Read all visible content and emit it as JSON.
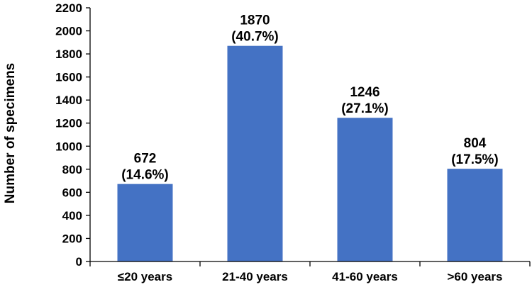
{
  "chart_data": {
    "type": "bar",
    "categories": [
      "≤20 years",
      "21-40 years",
      "41-60 years",
      ">60 years"
    ],
    "values": [
      672,
      1870,
      1246,
      804
    ],
    "data_labels": [
      [
        "672",
        "(14.6%)"
      ],
      [
        "1870",
        "(40.7%)"
      ],
      [
        "1246",
        "(27.1%)"
      ],
      [
        "804",
        "(17.5%)"
      ]
    ],
    "title": "",
    "xlabel": "",
    "ylabel": "Number of specimens",
    "ylim": [
      0,
      2200
    ],
    "yticks": [
      0,
      200,
      400,
      600,
      800,
      1000,
      1200,
      1400,
      1600,
      1800,
      2000,
      2200
    ],
    "grid": false,
    "bar_color": "#4472C4"
  }
}
